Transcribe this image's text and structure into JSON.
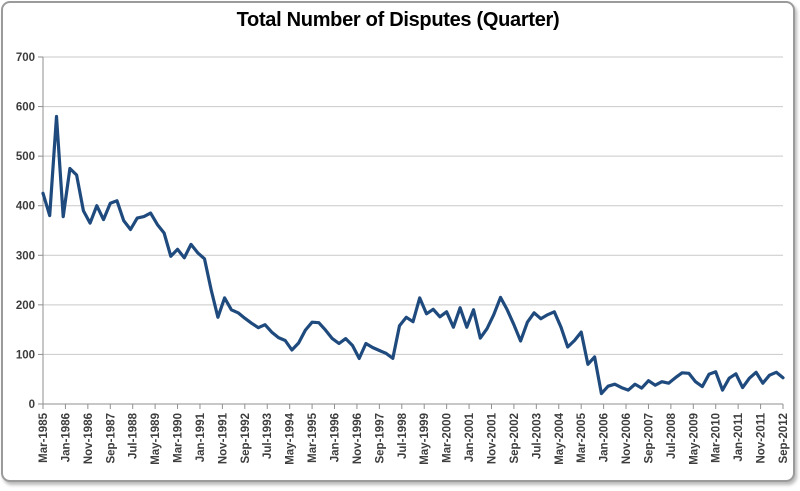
{
  "chart_data": {
    "type": "line",
    "title": "Total Number of Disputes (Quarter)",
    "xlabel": "",
    "ylabel": "",
    "ylim": [
      0,
      700
    ],
    "y_ticks": [
      0,
      100,
      200,
      300,
      400,
      500,
      600,
      700
    ],
    "grid": "horizontal",
    "legend": "none",
    "x_axis_type": "quarterly dates",
    "x_tick_interval_months": 10,
    "x_tick_labels": [
      "Mar-1985",
      "Jan-1986",
      "Nov-1986",
      "Sep-1987",
      "Jul-1988",
      "May-1989",
      "Mar-1990",
      "Jan-1991",
      "Nov-1991",
      "Sep-1992",
      "Jul-1993",
      "May-1994",
      "Mar-1995",
      "Jan-1996",
      "Nov-1996",
      "Sep-1997",
      "Jul-1998",
      "May-1999",
      "Mar-2000",
      "Jan-2001",
      "Nov-2001",
      "Sep-2002",
      "Jul-2003",
      "May-2004",
      "Mar-2005",
      "Jan-2006",
      "Nov-2006",
      "Sep-2007",
      "Jul-2008",
      "May-2009",
      "Mar-2010",
      "Jan-2011",
      "Nov-2011",
      "Sep-2012"
    ],
    "series": [
      {
        "name": "Total number of disputes per quarter",
        "start_quarter": "Mar-1985",
        "end_quarter": "Sep-2012",
        "interval_months": 3,
        "values": [
          425,
          380,
          580,
          378,
          475,
          462,
          390,
          365,
          400,
          372,
          405,
          410,
          370,
          352,
          375,
          378,
          385,
          362,
          345,
          298,
          312,
          295,
          322,
          305,
          293,
          230,
          175,
          214,
          190,
          184,
          173,
          163,
          154,
          160,
          145,
          134,
          128,
          109,
          123,
          149,
          165,
          164,
          149,
          132,
          122,
          132,
          118,
          92,
          122,
          114,
          108,
          102,
          92,
          158,
          175,
          166,
          214,
          182,
          191,
          176,
          186,
          155,
          194,
          155,
          190,
          133,
          152,
          180,
          215,
          190,
          160,
          127,
          165,
          184,
          172,
          180,
          186,
          155,
          115,
          128,
          145,
          80,
          95,
          21,
          36,
          40,
          33,
          28,
          40,
          32,
          47,
          38,
          45,
          42,
          53,
          63,
          62,
          45,
          35,
          60,
          65,
          28,
          52,
          61,
          33,
          52,
          64,
          42,
          58,
          64,
          53
        ]
      }
    ],
    "line_color": "#1F4A7D",
    "gridline_color": "#C9C9C9",
    "axis_color": "#8F8F8F",
    "tick_label_color": "#3D3D3D",
    "title_color": "#000000",
    "background_color": "#FFFFFF",
    "frame_border_color": "#9B9B9B"
  }
}
